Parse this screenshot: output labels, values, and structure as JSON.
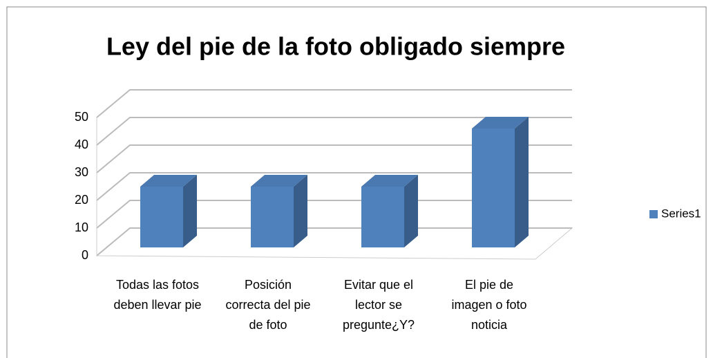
{
  "chart_data": {
    "type": "bar3d",
    "title": "Ley del pie de la foto obligado siempre",
    "categories": [
      "Todas las fotos deben llevar pie",
      "Posición correcta del pie de foto",
      "Evitar que el lector se pregunte¿Y?",
      "El pie de imagen o foto noticia"
    ],
    "series": [
      {
        "name": "Series1",
        "color": "#4f81bd",
        "values": [
          22,
          22,
          22,
          43
        ]
      }
    ],
    "ylim": [
      0,
      50
    ],
    "yticks": [
      0,
      10,
      20,
      30,
      40,
      50
    ],
    "grid": true,
    "legend": "right"
  }
}
